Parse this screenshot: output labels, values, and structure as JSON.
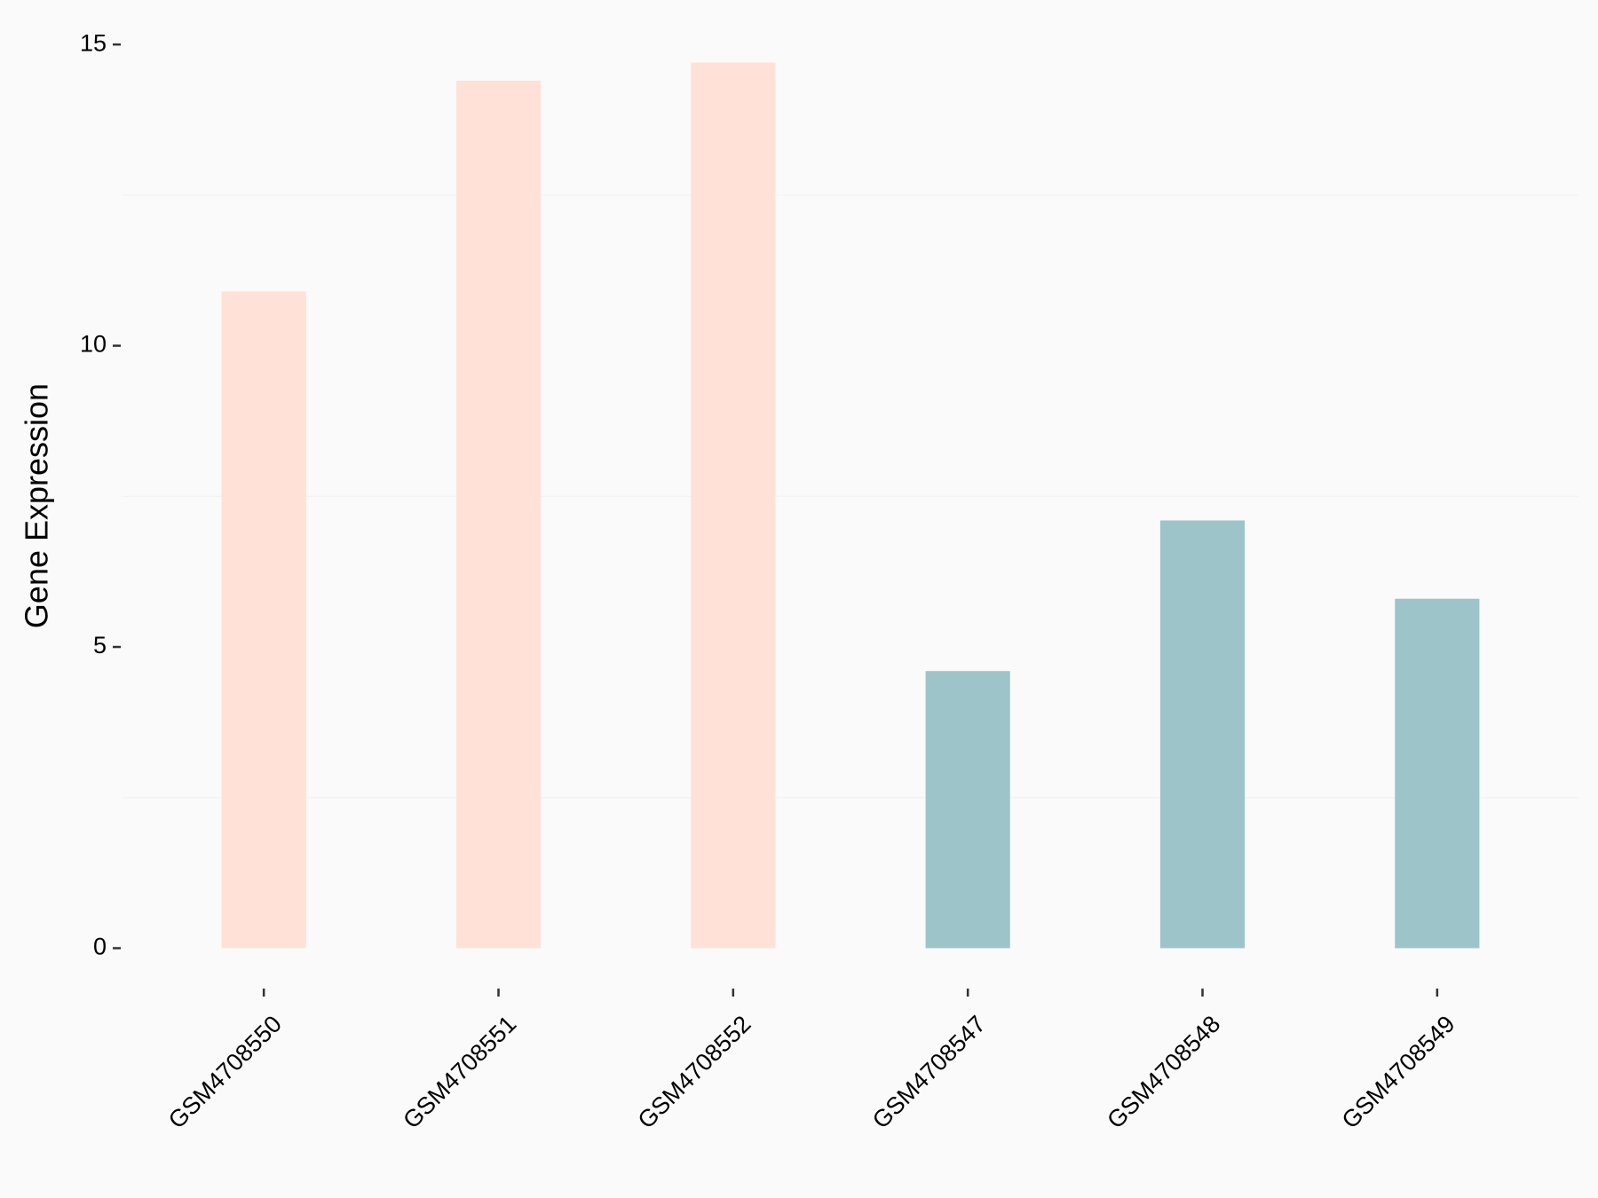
{
  "chart_data": {
    "type": "bar",
    "y_label": "Gene Expression",
    "categories": [
      "GSM4708550",
      "GSM4708551",
      "GSM4708552",
      "GSM4708547",
      "GSM4708548",
      "GSM4708549"
    ],
    "values": [
      10.9,
      14.4,
      14.7,
      4.6,
      7.1,
      5.8
    ],
    "colors": [
      "#FFE1D8",
      "#FFE1D8",
      "#FFE1D8",
      "#9DC4C8",
      "#9DC4C8",
      "#9DC4C8"
    ],
    "ylim": [
      -0.7,
      15.4
    ],
    "yticks": [
      0,
      5,
      10,
      15
    ],
    "minor_grid": [
      2.5,
      7.5,
      12.5
    ]
  }
}
